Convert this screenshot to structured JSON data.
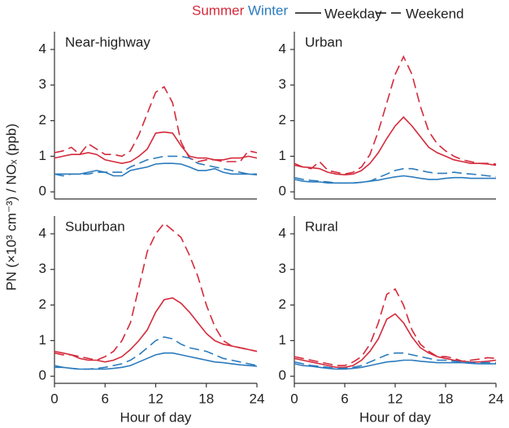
{
  "legend": {
    "colors": [
      {
        "label": "Summer",
        "color": "#d42a3b"
      },
      {
        "label": "Winter",
        "color": "#2b7bbd"
      }
    ],
    "styles": [
      {
        "label": "Weekday",
        "dash": "solid"
      },
      {
        "label": "Weekend",
        "dash": "dashed"
      }
    ]
  },
  "y_label": "PN (×10³ cm⁻³) / NOₓ (ppb)",
  "chart_data": [
    {
      "type": "line",
      "title": "Near-highway",
      "xlim": [
        0,
        24
      ],
      "ylim": [
        -0.2,
        4.5
      ],
      "yticks": [
        0,
        1,
        2,
        3,
        4
      ],
      "x": [
        0,
        1,
        2,
        3,
        4,
        5,
        6,
        7,
        8,
        9,
        10,
        11,
        12,
        13,
        14,
        15,
        16,
        17,
        18,
        19,
        20,
        21,
        22,
        23,
        24
      ],
      "series": [
        {
          "color": "#d42a3b",
          "dash": "solid",
          "values": [
            0.95,
            1.0,
            1.05,
            1.05,
            1.1,
            1.05,
            0.9,
            0.85,
            0.8,
            0.85,
            1.0,
            1.2,
            1.65,
            1.68,
            1.65,
            1.3,
            1.0,
            0.95,
            0.95,
            0.9,
            0.9,
            0.95,
            0.95,
            1.0,
            0.95
          ]
        },
        {
          "color": "#d42a3b",
          "dash": "dashed",
          "values": [
            1.1,
            1.15,
            1.25,
            1.05,
            1.35,
            1.2,
            1.05,
            1.05,
            1.0,
            1.15,
            1.6,
            2.2,
            2.8,
            2.95,
            2.5,
            1.4,
            0.95,
            0.85,
            0.9,
            0.9,
            0.85,
            0.85,
            0.85,
            1.15,
            1.1
          ]
        },
        {
          "color": "#2b7bbd",
          "dash": "solid",
          "values": [
            0.5,
            0.5,
            0.5,
            0.5,
            0.55,
            0.6,
            0.55,
            0.45,
            0.45,
            0.6,
            0.65,
            0.7,
            0.78,
            0.8,
            0.8,
            0.78,
            0.7,
            0.6,
            0.6,
            0.65,
            0.55,
            0.5,
            0.5,
            0.5,
            0.48
          ]
        },
        {
          "color": "#2b7bbd",
          "dash": "dashed",
          "values": [
            0.5,
            0.45,
            0.5,
            0.5,
            0.5,
            0.55,
            0.55,
            0.55,
            0.55,
            0.7,
            0.8,
            0.9,
            0.95,
            1.0,
            1.0,
            1.0,
            0.95,
            0.8,
            0.75,
            0.7,
            0.65,
            0.6,
            0.55,
            0.5,
            0.5
          ]
        }
      ]
    },
    {
      "type": "line",
      "title": "Urban",
      "xlim": [
        0,
        24
      ],
      "ylim": [
        -0.2,
        4.5
      ],
      "yticks": [
        0,
        1,
        2,
        3,
        4
      ],
      "x": [
        0,
        1,
        2,
        3,
        4,
        5,
        6,
        7,
        8,
        9,
        10,
        11,
        12,
        13,
        14,
        15,
        16,
        17,
        18,
        19,
        20,
        21,
        22,
        23,
        24
      ],
      "series": [
        {
          "color": "#d42a3b",
          "dash": "solid",
          "values": [
            0.75,
            0.7,
            0.68,
            0.65,
            0.55,
            0.5,
            0.48,
            0.5,
            0.6,
            0.8,
            1.1,
            1.5,
            1.85,
            2.1,
            1.85,
            1.55,
            1.25,
            1.1,
            1.0,
            0.9,
            0.85,
            0.8,
            0.8,
            0.78,
            0.75
          ]
        },
        {
          "color": "#d42a3b",
          "dash": "dashed",
          "values": [
            0.8,
            0.7,
            0.65,
            0.85,
            0.6,
            0.55,
            0.5,
            0.55,
            0.7,
            1.05,
            1.7,
            2.5,
            3.3,
            3.8,
            3.3,
            2.4,
            1.7,
            1.35,
            1.15,
            1.0,
            0.9,
            0.85,
            0.8,
            0.8,
            0.78
          ]
        },
        {
          "color": "#2b7bbd",
          "dash": "solid",
          "values": [
            0.35,
            0.3,
            0.28,
            0.28,
            0.25,
            0.25,
            0.25,
            0.25,
            0.27,
            0.3,
            0.33,
            0.38,
            0.42,
            0.45,
            0.42,
            0.38,
            0.35,
            0.35,
            0.38,
            0.4,
            0.4,
            0.38,
            0.38,
            0.38,
            0.38
          ]
        },
        {
          "color": "#2b7bbd",
          "dash": "dashed",
          "values": [
            0.4,
            0.35,
            0.32,
            0.3,
            0.28,
            0.25,
            0.25,
            0.25,
            0.27,
            0.3,
            0.4,
            0.5,
            0.6,
            0.65,
            0.65,
            0.6,
            0.55,
            0.52,
            0.52,
            0.55,
            0.52,
            0.5,
            0.48,
            0.45,
            0.43
          ]
        }
      ]
    },
    {
      "type": "line",
      "title": "Suburban",
      "x_label": "Hour of day",
      "xlim": [
        0,
        24
      ],
      "xticks": [
        0,
        6,
        12,
        18,
        24
      ],
      "ylim": [
        -0.2,
        4.5
      ],
      "yticks": [
        0,
        1,
        2,
        3,
        4
      ],
      "x": [
        0,
        1,
        2,
        3,
        4,
        5,
        6,
        7,
        8,
        9,
        10,
        11,
        12,
        13,
        14,
        15,
        16,
        17,
        18,
        19,
        20,
        21,
        22,
        23,
        24
      ],
      "series": [
        {
          "color": "#d42a3b",
          "dash": "solid",
          "values": [
            0.7,
            0.65,
            0.6,
            0.5,
            0.45,
            0.45,
            0.4,
            0.45,
            0.55,
            0.75,
            1.0,
            1.3,
            1.8,
            2.15,
            2.2,
            2.05,
            1.8,
            1.5,
            1.2,
            1.0,
            0.9,
            0.85,
            0.8,
            0.75,
            0.7
          ]
        },
        {
          "color": "#d42a3b",
          "dash": "dashed",
          "values": [
            0.65,
            0.6,
            0.6,
            0.55,
            0.5,
            0.45,
            0.55,
            0.7,
            1.0,
            1.5,
            2.5,
            3.5,
            4.0,
            4.3,
            4.1,
            3.9,
            3.4,
            2.8,
            2.0,
            1.4,
            1.0,
            0.85,
            0.8,
            0.75,
            0.7
          ]
        },
        {
          "color": "#2b7bbd",
          "dash": "solid",
          "values": [
            0.3,
            0.25,
            0.22,
            0.2,
            0.2,
            0.2,
            0.2,
            0.22,
            0.25,
            0.3,
            0.4,
            0.5,
            0.6,
            0.65,
            0.65,
            0.6,
            0.55,
            0.5,
            0.45,
            0.4,
            0.38,
            0.35,
            0.32,
            0.3,
            0.28
          ]
        },
        {
          "color": "#2b7bbd",
          "dash": "dashed",
          "values": [
            0.25,
            0.25,
            0.22,
            0.2,
            0.2,
            0.22,
            0.25,
            0.3,
            0.35,
            0.45,
            0.6,
            0.8,
            1.0,
            1.1,
            1.05,
            0.9,
            0.8,
            0.75,
            0.7,
            0.6,
            0.5,
            0.45,
            0.4,
            0.35,
            0.3
          ]
        }
      ]
    },
    {
      "type": "line",
      "title": "Rural",
      "x_label": "Hour of day",
      "xlim": [
        0,
        24
      ],
      "xticks": [
        0,
        6,
        12,
        18,
        24
      ],
      "ylim": [
        -0.2,
        4.5
      ],
      "yticks": [
        0,
        1,
        2,
        3,
        4
      ],
      "x": [
        0,
        1,
        2,
        3,
        4,
        5,
        6,
        7,
        8,
        9,
        10,
        11,
        12,
        13,
        14,
        15,
        16,
        17,
        18,
        19,
        20,
        21,
        22,
        23,
        24
      ],
      "series": [
        {
          "color": "#d42a3b",
          "dash": "solid",
          "values": [
            0.5,
            0.45,
            0.4,
            0.35,
            0.3,
            0.25,
            0.25,
            0.3,
            0.45,
            0.7,
            1.05,
            1.6,
            1.75,
            1.5,
            1.1,
            0.8,
            0.65,
            0.55,
            0.5,
            0.45,
            0.42,
            0.4,
            0.4,
            0.42,
            0.45
          ]
        },
        {
          "color": "#d42a3b",
          "dash": "dashed",
          "values": [
            0.55,
            0.5,
            0.45,
            0.4,
            0.35,
            0.3,
            0.3,
            0.4,
            0.55,
            0.9,
            1.5,
            2.3,
            2.45,
            2.0,
            1.3,
            0.9,
            0.7,
            0.55,
            0.55,
            0.5,
            0.42,
            0.45,
            0.48,
            0.52,
            0.5
          ]
        },
        {
          "color": "#2b7bbd",
          "dash": "solid",
          "values": [
            0.35,
            0.3,
            0.28,
            0.25,
            0.22,
            0.2,
            0.2,
            0.22,
            0.25,
            0.3,
            0.35,
            0.4,
            0.42,
            0.45,
            0.45,
            0.42,
            0.4,
            0.38,
            0.38,
            0.38,
            0.38,
            0.36,
            0.35,
            0.35,
            0.35
          ]
        },
        {
          "color": "#2b7bbd",
          "dash": "dashed",
          "values": [
            0.4,
            0.35,
            0.3,
            0.28,
            0.25,
            0.22,
            0.22,
            0.25,
            0.3,
            0.4,
            0.5,
            0.6,
            0.65,
            0.65,
            0.6,
            0.55,
            0.5,
            0.45,
            0.45,
            0.42,
            0.4,
            0.38,
            0.38,
            0.38,
            0.38
          ]
        }
      ]
    }
  ]
}
